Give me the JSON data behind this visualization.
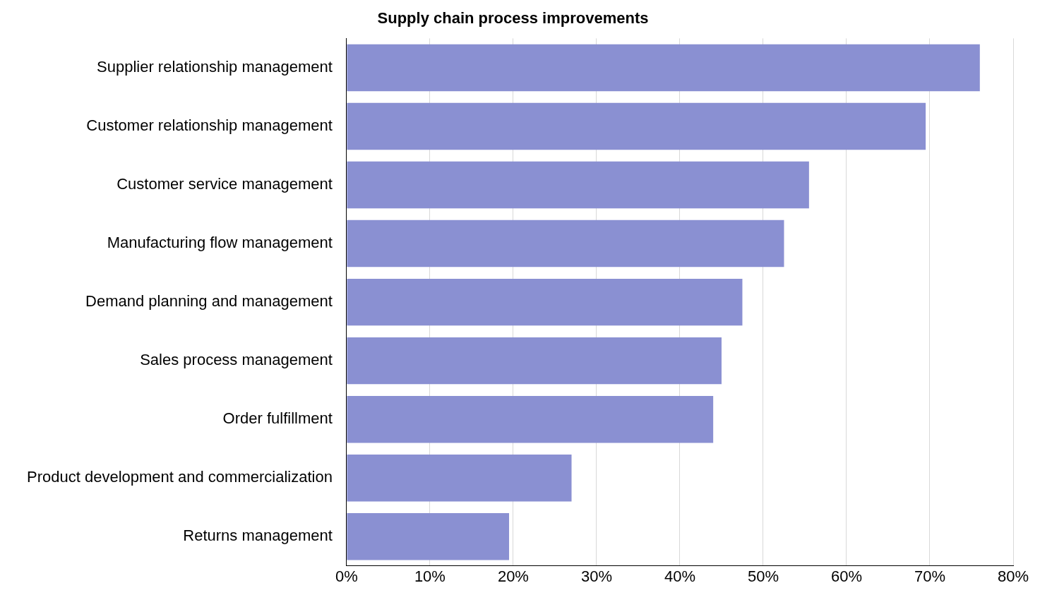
{
  "chart_data": {
    "type": "bar",
    "orientation": "horizontal",
    "title": "Supply chain process improvements",
    "categories": [
      "Supplier relationship management",
      "Customer relationship management",
      "Customer service management",
      "Manufacturing flow management",
      "Demand planning and management",
      "Sales process management",
      "Order fulfillment",
      "Product development and commercialization",
      "Returns management"
    ],
    "values": [
      76,
      69.5,
      55.5,
      52.5,
      47.5,
      45,
      44,
      27,
      19.5
    ],
    "color": "#8a90d2",
    "xlim": [
      0,
      80
    ],
    "xticks": [
      {
        "value": 0,
        "label": "0%"
      },
      {
        "value": 10,
        "label": "10%"
      },
      {
        "value": 20,
        "label": "20%"
      },
      {
        "value": 30,
        "label": "30%"
      },
      {
        "value": 40,
        "label": "40%"
      },
      {
        "value": 50,
        "label": "50%"
      },
      {
        "value": 60,
        "label": "60%"
      },
      {
        "value": 70,
        "label": "70%"
      },
      {
        "value": 80,
        "label": "80%"
      }
    ],
    "grid": "x",
    "legend": false
  }
}
